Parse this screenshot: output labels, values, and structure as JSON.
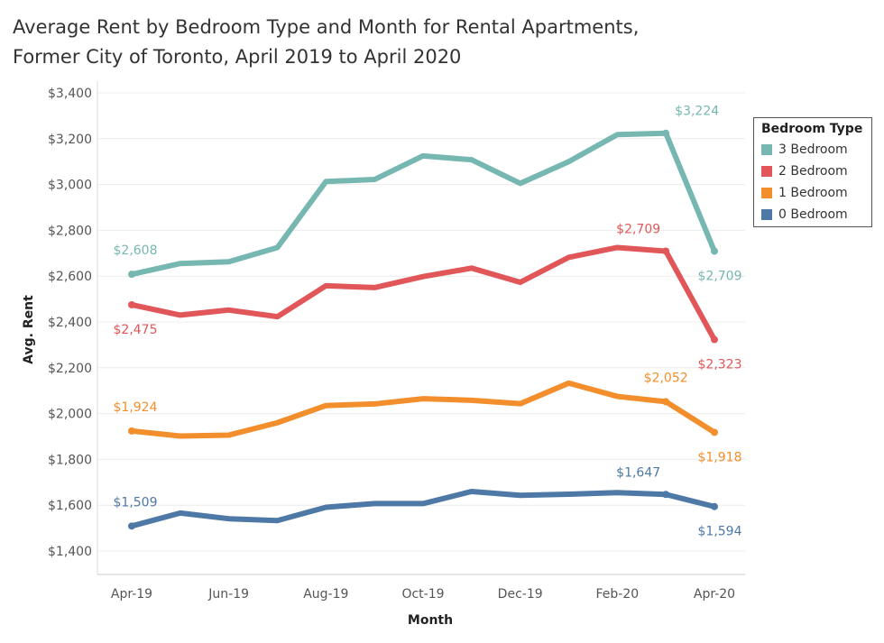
{
  "title_lines": [
    "Average Rent by Bedroom Type and Month for Rental Apartments,",
    "Former City of Toronto, April 2019 to April 2020"
  ],
  "legend": {
    "title": "Bedroom Type"
  },
  "chart_data": {
    "type": "line",
    "title": "Average Rent by Bedroom Type and Month for Rental Apartments, Former City of Toronto, April 2019 to April 2020",
    "xlabel": "Month",
    "ylabel": "Avg. Rent",
    "ylim": [
      1400,
      3400
    ],
    "yticks": [
      1400,
      1600,
      1800,
      2000,
      2200,
      2400,
      2600,
      2800,
      3000,
      3200,
      3400
    ],
    "ytick_labels": [
      "$1,400",
      "$1,600",
      "$1,800",
      "$2,000",
      "$2,200",
      "$2,400",
      "$2,600",
      "$2,800",
      "$3,000",
      "$3,200",
      "$3,400"
    ],
    "x": [
      "Apr-19",
      "May-19",
      "Jun-19",
      "Jul-19",
      "Aug-19",
      "Sep-19",
      "Oct-19",
      "Nov-19",
      "Dec-19",
      "Jan-20",
      "Feb-20",
      "Mar-20",
      "Apr-20"
    ],
    "xtick_labels": [
      "Apr-19",
      "Jun-19",
      "Aug-19",
      "Oct-19",
      "Dec-19",
      "Feb-20",
      "Apr-20"
    ],
    "grid": true,
    "legend_position": "right",
    "series": [
      {
        "name": "3 Bedroom",
        "color": "#76b7b2",
        "values": [
          2608,
          2655,
          2663,
          2725,
          3013,
          3022,
          3125,
          3108,
          3005,
          3100,
          3218,
          3224,
          2709
        ],
        "labels": [
          {
            "index": 0,
            "text": "$2,608",
            "pos": "above"
          },
          {
            "index": 11,
            "text": "$3,224",
            "pos": "above-right"
          },
          {
            "index": 12,
            "text": "$2,709",
            "pos": "below"
          }
        ]
      },
      {
        "name": "2 Bedroom",
        "color": "#e15759",
        "values": [
          2475,
          2430,
          2452,
          2423,
          2558,
          2550,
          2598,
          2635,
          2573,
          2682,
          2725,
          2709,
          2323
        ],
        "labels": [
          {
            "index": 0,
            "text": "$2,475",
            "pos": "below"
          },
          {
            "index": 11,
            "text": "$2,709",
            "pos": "above-left"
          },
          {
            "index": 12,
            "text": "$2,323",
            "pos": "below"
          }
        ]
      },
      {
        "name": "1 Bedroom",
        "color": "#f28e2b",
        "values": [
          1924,
          1902,
          1906,
          1960,
          2035,
          2042,
          2065,
          2058,
          2043,
          2133,
          2075,
          2052,
          1918
        ],
        "labels": [
          {
            "index": 0,
            "text": "$1,924",
            "pos": "above"
          },
          {
            "index": 11,
            "text": "$2,052",
            "pos": "above"
          },
          {
            "index": 12,
            "text": "$1,918",
            "pos": "below"
          }
        ]
      },
      {
        "name": "0 Bedroom",
        "color": "#4e79a7",
        "values": [
          1509,
          1566,
          1541,
          1533,
          1591,
          1607,
          1607,
          1660,
          1643,
          1648,
          1655,
          1647,
          1594
        ],
        "labels": [
          {
            "index": 0,
            "text": "$1,509",
            "pos": "above"
          },
          {
            "index": 11,
            "text": "$1,647",
            "pos": "above-left"
          },
          {
            "index": 12,
            "text": "$1,594",
            "pos": "below"
          }
        ]
      }
    ]
  }
}
